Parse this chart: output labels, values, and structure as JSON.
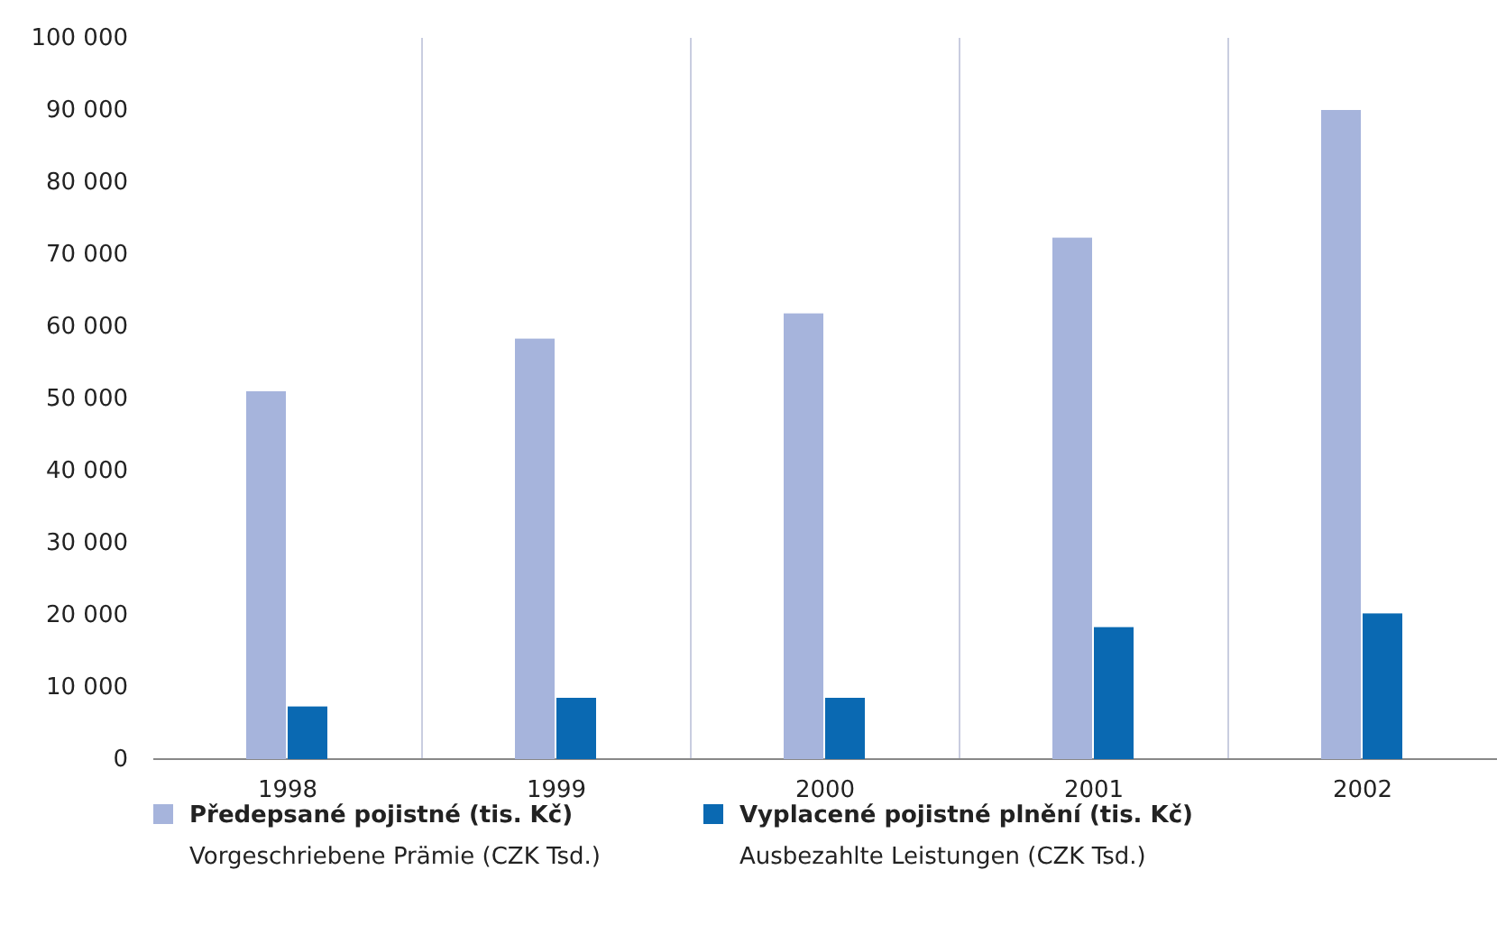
{
  "chart_data": {
    "type": "bar",
    "categories": [
      "1998",
      "1999",
      "2000",
      "2001",
      "2002"
    ],
    "series": [
      {
        "name": "Předepsané pojistné (tis. Kč)\nVorgeschriebene Prämie (CZK Tsd.)",
        "color": "#a6b4dc",
        "values": [
          51000,
          58300,
          61800,
          72300,
          90000
        ]
      },
      {
        "name": "Vyplacené pojistné plnění (tis. Kč)\nAusbezahlte Leistungen (CZK Tsd.)",
        "color": "#0a69b2",
        "values": [
          7300,
          8500,
          8500,
          18300,
          20200
        ]
      }
    ],
    "ylim": [
      0,
      100000
    ],
    "yticks": [
      0,
      {
        "value": 10000,
        "label": "10 000"
      },
      {
        "value": 20000,
        "label": "20 000"
      },
      {
        "value": 30000,
        "label": "30 000"
      },
      {
        "value": 40000,
        "label": "40 000"
      },
      {
        "value": 50000,
        "label": "50 000"
      },
      {
        "value": 60000,
        "label": "60 000"
      },
      {
        "value": 70000,
        "label": "70 000"
      },
      {
        "value": 80000,
        "label": "80 000"
      },
      {
        "value": 90000,
        "label": "90 000"
      },
      {
        "value": 100000,
        "label": "100 000"
      }
    ],
    "grid": "x",
    "legend": "bottom"
  }
}
